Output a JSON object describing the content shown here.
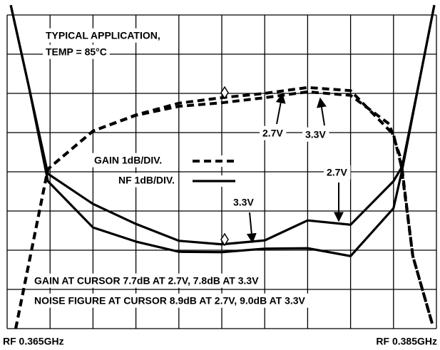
{
  "chart_data": {
    "type": "line",
    "title": "TYPICAL APPLICATION,",
    "subtitle": "TEMP = 85°C",
    "xlim": [
      0.365,
      0.385
    ],
    "xticks": [
      {
        "value": 0.365,
        "label": "RF 0.365GHz"
      },
      0.367,
      0.369,
      0.371,
      0.373,
      0.375,
      0.377,
      0.379,
      0.381,
      0.383,
      {
        "value": 0.385,
        "label": "RF 0.385GHz"
      }
    ],
    "ylim": [
      0,
      8
    ],
    "yticks": [
      0,
      1,
      2,
      3,
      4,
      5,
      6,
      7,
      8
    ],
    "grid": true,
    "legend": [
      {
        "label": "GAIN 1dB/DIV.",
        "style": "dashed"
      },
      {
        "label": "NF 1dB/DIV.",
        "style": "solid"
      }
    ],
    "series": [
      {
        "style": "dashed",
        "color": "#000000",
        "x": [
          0.3654,
          0.3669,
          0.369,
          0.371,
          0.373,
          0.375,
          0.377,
          0.379,
          0.381,
          0.3828,
          0.3833,
          0.3839,
          0.3848
        ],
        "values": [
          0.0,
          4.07,
          5.04,
          5.44,
          5.67,
          5.76,
          5.89,
          6.04,
          5.95,
          5.22,
          4.4,
          1.85,
          0.13
        ]
      },
      {
        "style": "dashed",
        "color": "#000000",
        "x": [
          0.3654,
          0.3669,
          0.369,
          0.371,
          0.373,
          0.375,
          0.377,
          0.379,
          0.381,
          0.383,
          0.3834,
          0.3839,
          0.3848
        ],
        "values": [
          0.0,
          4.07,
          5.04,
          5.45,
          5.75,
          5.89,
          6.0,
          6.15,
          6.07,
          4.95,
          4.07,
          1.85,
          0.13
        ]
      },
      {
        "style": "solid",
        "color": "#000000",
        "x": [
          0.36517,
          0.366,
          0.3669,
          0.369,
          0.371,
          0.373,
          0.375,
          0.377,
          0.379,
          0.381,
          0.383,
          0.3834,
          0.3843,
          0.3849
        ],
        "values": [
          8.25,
          6.2,
          3.95,
          3.18,
          2.67,
          2.24,
          2.15,
          2.25,
          2.76,
          2.65,
          3.76,
          4.13,
          6.58,
          8.25
        ]
      },
      {
        "style": "solid",
        "color": "#000000",
        "x": [
          0.36517,
          0.366,
          0.3669,
          0.369,
          0.371,
          0.373,
          0.375,
          0.377,
          0.379,
          0.381,
          0.383,
          0.3834,
          0.3843,
          0.3849
        ],
        "values": [
          8.25,
          6.2,
          3.76,
          2.58,
          2.22,
          1.96,
          1.95,
          2.04,
          2.05,
          1.85,
          3.07,
          4.04,
          6.58,
          8.25
        ]
      }
    ],
    "annotations": [
      {
        "text": "2.7V"
      },
      {
        "text": "3.3V"
      },
      {
        "text": "2.7V"
      },
      {
        "text": "3.3V"
      },
      {
        "text": "GAIN AT CURSOR 7.7dB AT 2.7V, 7.8dB AT 3.3V"
      },
      {
        "text": "NOISE FIGURE AT CURSOR 8.9dB AT 2.7V, 9.0dB AT 3.3V"
      }
    ]
  }
}
